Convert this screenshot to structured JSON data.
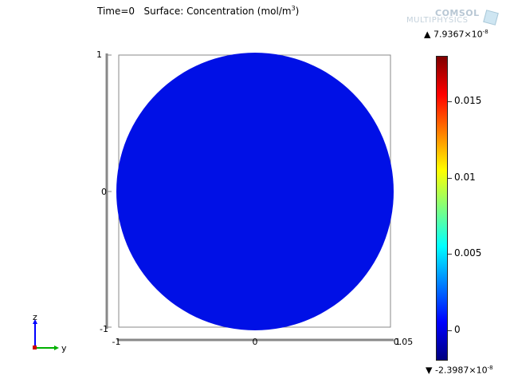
{
  "title": {
    "time": "Time=0",
    "surface": "Surface: Concentration (mol/m",
    "exponent": "3",
    "close": ")"
  },
  "logo": {
    "line1": "COMSOL",
    "line2": "MULTIPHYSICS"
  },
  "colors": {
    "domain_fill": "#0010e6",
    "axis_gray": "#888888",
    "colormap": [
      "#00007f",
      "#0000ff",
      "#007fff",
      "#00ffff",
      "#7fff7f",
      "#ffff00",
      "#ff7f00",
      "#ff0000",
      "#7f0000"
    ]
  },
  "colorbar": {
    "max": {
      "marker": "▲",
      "mantissa": "7.9367×10",
      "exponent": "-8"
    },
    "min": {
      "marker": "▼",
      "mantissa": "-2.3987×10",
      "exponent": "-8"
    },
    "ticks": [
      "0.015",
      "0.01",
      "0.005",
      "0"
    ],
    "tick_values": [
      0.015,
      0.01,
      0.005,
      0
    ],
    "range": [
      -0.002,
      0.018
    ]
  },
  "axes": {
    "y_left_ticks": [
      "1",
      "0",
      "-1"
    ],
    "x_bottom_ticks": [
      "-1",
      "0",
      "1"
    ],
    "x_right_overlap": "0.05",
    "orientation": {
      "vertical": "z",
      "horizontal": "y"
    }
  }
}
